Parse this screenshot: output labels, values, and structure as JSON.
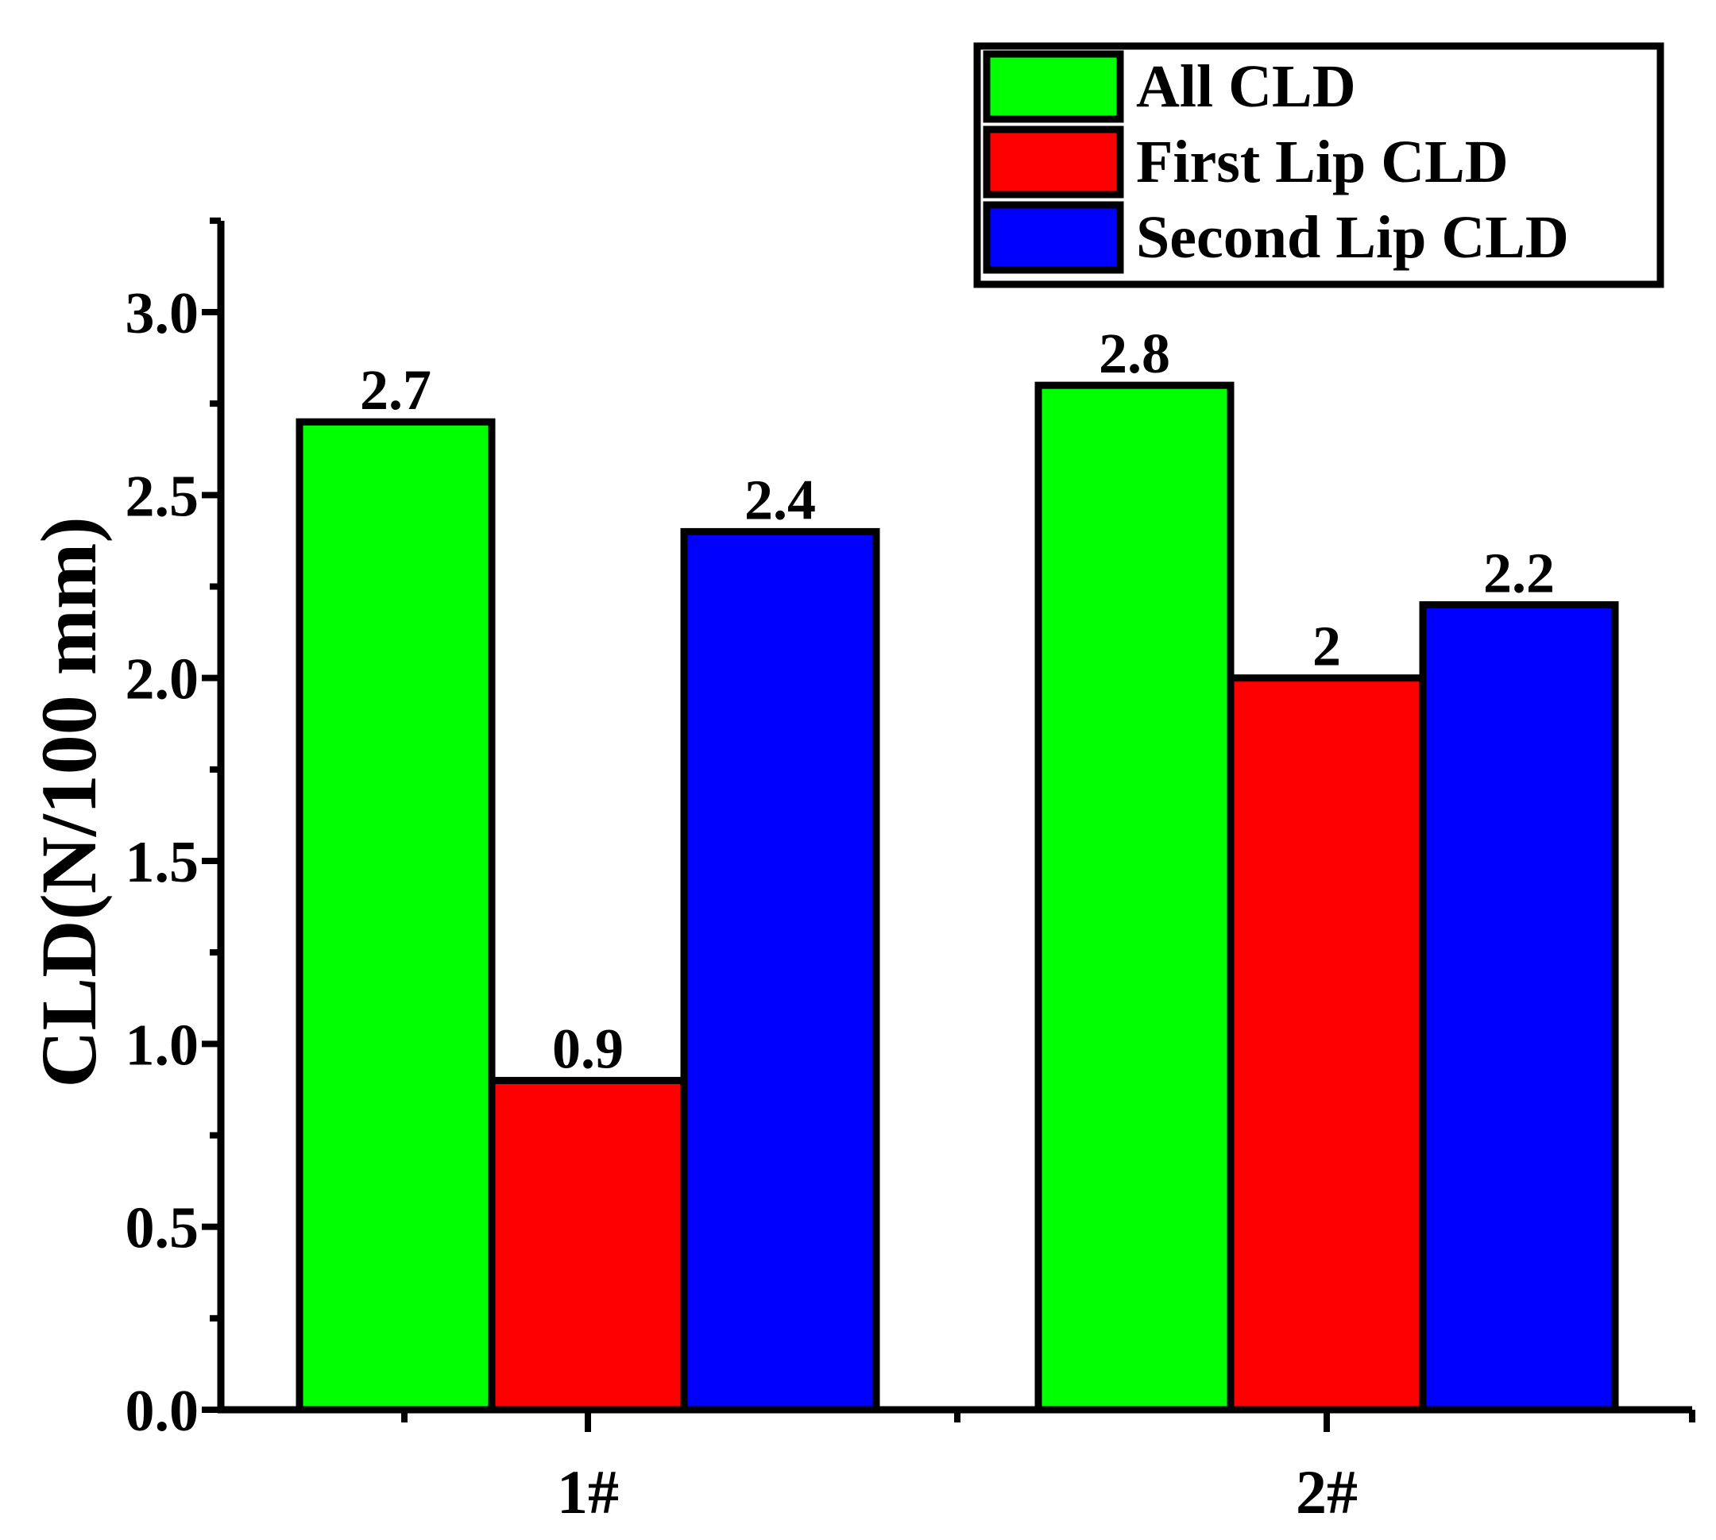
{
  "chart_data": {
    "type": "bar",
    "title": "",
    "xlabel": "",
    "ylabel": "CLD(N/100 mm)",
    "categories": [
      "1#",
      "2#"
    ],
    "series": [
      {
        "name": "All CLD",
        "values": [
          2.7,
          2.8
        ],
        "labels": [
          "2.7",
          "2.8"
        ],
        "color": "#00ff00"
      },
      {
        "name": "First Lip CLD",
        "values": [
          0.9,
          2.0
        ],
        "labels": [
          "0.9",
          "2"
        ],
        "color": "#ff0000"
      },
      {
        "name": "Second Lip CLD",
        "values": [
          2.4,
          2.2
        ],
        "labels": [
          "2.4",
          "2.2"
        ],
        "color": "#0000ff"
      }
    ],
    "ylim": [
      0,
      3.25
    ],
    "yticks": [
      "0.0",
      "0.5",
      "1.0",
      "1.5",
      "2.0",
      "2.5",
      "3.0"
    ],
    "grid": false,
    "legend_position": "top-right"
  }
}
